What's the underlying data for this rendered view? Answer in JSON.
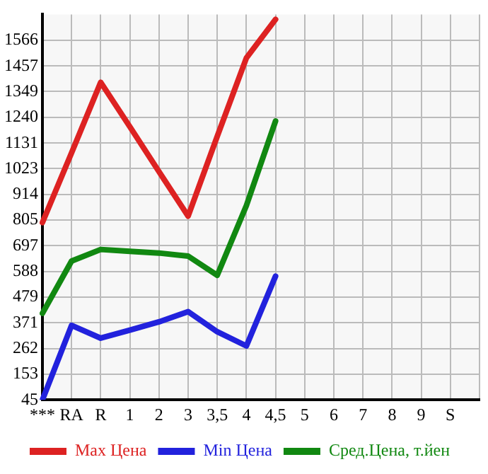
{
  "chart_data": {
    "type": "line",
    "categories": [
      "***",
      "RA",
      "R",
      "1",
      "2",
      "3",
      "3,5",
      "4",
      "4,5",
      "5",
      "6",
      "7",
      "8",
      "9",
      "S",
      null
    ],
    "series": [
      {
        "name": "Max Цена",
        "color": "#dd2222",
        "values": [
          795,
          1090,
          1388,
          1200,
          1010,
          822,
          1160,
          1491,
          1654,
          null,
          null,
          null,
          null,
          null,
          null,
          null
        ]
      },
      {
        "name": "Min Цена",
        "color": "#2222dd",
        "values": [
          45,
          360,
          306,
          340,
          375,
          418,
          333,
          273,
          568,
          null,
          null,
          null,
          null,
          null,
          null,
          null
        ]
      },
      {
        "name": "Сред.Цена, т.йен",
        "color": "#118811",
        "values": [
          411,
          632,
          681,
          673,
          666,
          653,
          572,
          867,
          1224,
          null,
          null,
          null,
          null,
          null,
          null,
          null
        ]
      }
    ],
    "ylim": [
      45,
      1675
    ],
    "yticks": [
      45,
      153,
      262,
      371,
      479,
      588,
      697,
      805,
      914,
      1023,
      1131,
      1240,
      1349,
      1457,
      1566
    ],
    "grid": true,
    "legend": "bottom",
    "marker": "none",
    "line_style": "solid"
  }
}
